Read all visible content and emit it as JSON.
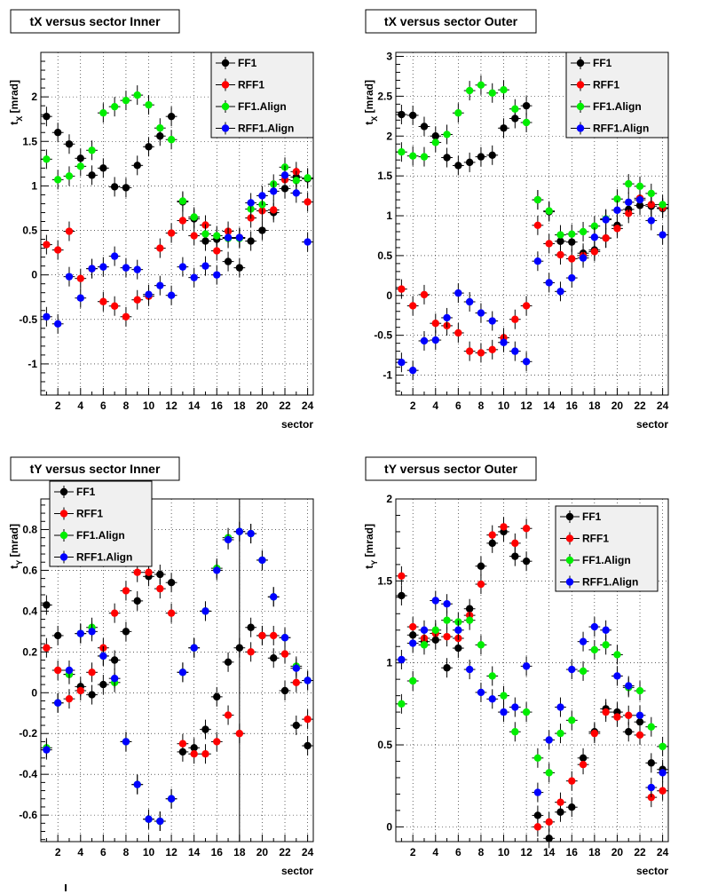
{
  "chart_data": [
    {
      "type": "scatter",
      "title": "tX versus sector Inner",
      "xlabel": "sector",
      "ylabel": "t_X  [mrad]",
      "xlim": [
        0.5,
        24.5
      ],
      "ylim": [
        -1.35,
        2.5
      ],
      "yticks": [
        -1,
        -0.5,
        0,
        0.5,
        1,
        1.5,
        2
      ],
      "yticklabels": [
        "-1",
        "-0.5",
        "0",
        "0.5",
        "1",
        "1.5",
        "2"
      ],
      "xticks": [
        2,
        4,
        6,
        8,
        10,
        12,
        14,
        16,
        18,
        20,
        22,
        24
      ],
      "xticklabels": [
        "2",
        "4",
        "6",
        "8",
        "10",
        "12",
        "14",
        "16",
        "18",
        "20",
        "22",
        "24"
      ],
      "grid": true,
      "legend_position": "top-right",
      "x": [
        1,
        2,
        3,
        4,
        5,
        6,
        7,
        8,
        9,
        10,
        11,
        12,
        13,
        14,
        15,
        16,
        17,
        18,
        19,
        20,
        21,
        22,
        23,
        24
      ],
      "series": [
        {
          "name": "FF1",
          "color": "#000000",
          "values": [
            1.78,
            1.6,
            1.47,
            1.31,
            1.12,
            1.2,
            0.99,
            0.98,
            1.23,
            1.44,
            1.56,
            1.78,
            0.82,
            0.63,
            0.38,
            0.4,
            0.15,
            0.08,
            0.38,
            0.5,
            0.7,
            0.97,
            1.1,
            1.08
          ]
        },
        {
          "name": "RFF1",
          "color": "#ff0000",
          "values": [
            0.34,
            0.28,
            0.49,
            -0.04,
            0.07,
            -0.3,
            -0.35,
            -0.47,
            -0.28,
            -0.24,
            0.3,
            0.47,
            0.61,
            0.44,
            0.56,
            0.27,
            0.49,
            0.42,
            0.64,
            0.72,
            0.73,
            1.07,
            1.16,
            0.82
          ]
        },
        {
          "name": "FF1.Align",
          "color": "#00ee00",
          "values": [
            1.3,
            1.07,
            1.11,
            1.22,
            1.4,
            1.82,
            1.89,
            1.96,
            2.02,
            1.91,
            1.65,
            1.52,
            0.83,
            0.65,
            0.46,
            0.44,
            0.41,
            0.41,
            0.74,
            0.79,
            1.02,
            1.21,
            1.06,
            1.09
          ]
        },
        {
          "name": "RFF1.Align",
          "color": "#0000ff",
          "values": [
            -0.47,
            -0.55,
            -0.02,
            -0.26,
            0.07,
            0.09,
            0.21,
            0.08,
            0.06,
            -0.22,
            -0.12,
            -0.23,
            0.09,
            -0.03,
            0.1,
            0.0,
            0.42,
            0.42,
            0.81,
            0.89,
            0.94,
            1.12,
            0.92,
            0.37
          ]
        }
      ]
    },
    {
      "type": "scatter",
      "title": "tX versus sector Outer",
      "xlabel": "sector",
      "ylabel": "t_X  [mrad]",
      "xlim": [
        0.5,
        24.5
      ],
      "ylim": [
        -1.25,
        3.05
      ],
      "yticks": [
        -1,
        -0.5,
        0,
        0.5,
        1,
        1.5,
        2,
        2.5,
        3
      ],
      "yticklabels": [
        "-1",
        "-0.5",
        "0",
        "0.5",
        "1",
        "1.5",
        "2",
        "2.5",
        "3"
      ],
      "xticks": [
        2,
        4,
        6,
        8,
        10,
        12,
        14,
        16,
        18,
        20,
        22,
        24
      ],
      "xticklabels": [
        "2",
        "4",
        "6",
        "8",
        "10",
        "12",
        "14",
        "16",
        "18",
        "20",
        "22",
        "24"
      ],
      "grid": true,
      "legend_position": "top-right",
      "x": [
        1,
        2,
        3,
        4,
        5,
        6,
        7,
        8,
        9,
        10,
        11,
        12,
        13,
        14,
        15,
        16,
        17,
        18,
        19,
        20,
        21,
        22,
        23,
        24
      ],
      "series": [
        {
          "name": "FF1",
          "color": "#000000",
          "values": [
            2.27,
            2.26,
            2.12,
            2.0,
            1.73,
            1.63,
            1.67,
            1.74,
            1.76,
            2.1,
            2.22,
            2.38,
            1.2,
            1.05,
            0.68,
            0.67,
            0.53,
            0.57,
            0.72,
            0.88,
            1.08,
            1.13,
            1.12,
            1.09
          ]
        },
        {
          "name": "RFF1",
          "color": "#ff0000",
          "values": [
            0.08,
            -0.13,
            0.01,
            -0.35,
            -0.38,
            -0.47,
            -0.7,
            -0.72,
            -0.68,
            -0.53,
            -0.3,
            -0.13,
            0.88,
            0.65,
            0.51,
            0.46,
            0.5,
            0.55,
            0.72,
            0.84,
            1.03,
            1.22,
            1.14,
            1.1
          ]
        },
        {
          "name": "FF1.Align",
          "color": "#00ee00",
          "values": [
            1.8,
            1.75,
            1.74,
            1.92,
            2.02,
            2.29,
            2.57,
            2.64,
            2.54,
            2.58,
            2.34,
            2.17,
            1.2,
            1.06,
            0.76,
            0.77,
            0.8,
            0.87,
            0.96,
            1.21,
            1.4,
            1.37,
            1.28,
            1.14
          ]
        },
        {
          "name": "RFF1.Align",
          "color": "#0000ff",
          "values": [
            -0.84,
            -0.94,
            -0.57,
            -0.56,
            -0.28,
            0.03,
            -0.08,
            -0.22,
            -0.32,
            -0.59,
            -0.7,
            -0.83,
            0.43,
            0.16,
            0.05,
            0.22,
            0.47,
            0.73,
            0.95,
            1.07,
            1.17,
            1.2,
            0.94,
            0.76
          ]
        }
      ]
    },
    {
      "type": "scatter",
      "title": "tY versus sector Inner",
      "xlabel": "sector",
      "ylabel": "t_Y  [mrad]",
      "xlim": [
        0.5,
        24.5
      ],
      "ylim": [
        -0.73,
        0.95
      ],
      "yticks": [
        -0.6,
        -0.4,
        -0.2,
        0,
        0.2,
        0.4,
        0.6,
        0.8
      ],
      "yticklabels": [
        "-0.6",
        "-0.4",
        "-0.2",
        "0",
        "0.2",
        "0.4",
        "0.6",
        "0.8"
      ],
      "xticks": [
        2,
        4,
        6,
        8,
        10,
        12,
        14,
        16,
        18,
        20,
        22,
        24
      ],
      "xticklabels": [
        "2",
        "4",
        "6",
        "8",
        "10",
        "12",
        "14",
        "16",
        "18",
        "20",
        "22",
        "24"
      ],
      "grid": true,
      "legend_position": "top-left",
      "x": [
        1,
        2,
        3,
        4,
        5,
        6,
        7,
        8,
        9,
        10,
        11,
        12,
        13,
        14,
        15,
        16,
        17,
        18,
        19,
        20,
        21,
        22,
        23,
        24
      ],
      "series": [
        {
          "name": "FF1",
          "color": "#000000",
          "values": [
            0.43,
            0.28,
            0.09,
            0.03,
            -0.01,
            0.04,
            0.16,
            0.3,
            0.45,
            0.57,
            0.58,
            0.54,
            -0.29,
            -0.27,
            -0.18,
            -0.02,
            0.15,
            0.22,
            0.32,
            0.28,
            0.17,
            0.01,
            -0.16,
            -0.26
          ]
        },
        {
          "name": "RFF1",
          "color": "#ff0000",
          "values": [
            0.22,
            0.11,
            -0.03,
            0.01,
            0.1,
            0.22,
            0.39,
            0.5,
            0.59,
            0.59,
            0.51,
            0.39,
            -0.25,
            -0.3,
            -0.3,
            -0.24,
            -0.11,
            -0.2,
            0.2,
            0.28,
            0.28,
            0.19,
            0.05,
            -0.13
          ]
        },
        {
          "name": "FF1.Align",
          "color": "#00ee00",
          "values": [
            -0.27,
            -0.05,
            0.09,
            0.29,
            0.32,
            0.18,
            0.05,
            -0.24,
            -0.45,
            -0.62,
            -0.63,
            -0.52,
            0.1,
            0.22,
            0.4,
            0.61,
            0.76,
            0.79,
            0.78,
            0.65,
            0.47,
            0.27,
            0.13,
            0.06
          ]
        },
        {
          "name": "RFF1.Align",
          "color": "#0000ff",
          "values": [
            -0.28,
            -0.05,
            0.11,
            0.29,
            0.3,
            0.18,
            0.07,
            -0.24,
            -0.45,
            -0.62,
            -0.63,
            -0.52,
            0.1,
            0.22,
            0.4,
            0.6,
            0.75,
            0.79,
            0.78,
            0.65,
            0.47,
            0.27,
            0.12,
            0.06
          ]
        }
      ]
    },
    {
      "type": "scatter",
      "title": "tY versus sector Outer",
      "xlabel": "sector",
      "ylabel": "t_Y  [mrad]",
      "xlim": [
        0.5,
        24.5
      ],
      "ylim": [
        -0.09,
        2.0
      ],
      "yticks": [
        0,
        0.5,
        1,
        1.5,
        2
      ],
      "yticklabels": [
        "0",
        "0.5",
        "1",
        "1.5",
        "2"
      ],
      "xticks": [
        2,
        4,
        6,
        8,
        10,
        12,
        14,
        16,
        18,
        20,
        22,
        24
      ],
      "xticklabels": [
        "2",
        "4",
        "6",
        "8",
        "10",
        "12",
        "14",
        "16",
        "18",
        "20",
        "22",
        "24"
      ],
      "grid": true,
      "legend_position": "top-right",
      "x": [
        1,
        2,
        3,
        4,
        5,
        6,
        7,
        8,
        9,
        10,
        11,
        12,
        13,
        14,
        15,
        16,
        17,
        18,
        19,
        20,
        21,
        22,
        23,
        24
      ],
      "series": [
        {
          "name": "FF1",
          "color": "#000000",
          "values": [
            1.41,
            1.17,
            1.13,
            1.14,
            0.97,
            1.09,
            1.33,
            1.59,
            1.73,
            1.8,
            1.65,
            1.62,
            0.07,
            -0.07,
            0.09,
            0.12,
            0.42,
            0.58,
            0.72,
            0.7,
            0.58,
            0.64,
            0.39,
            0.35
          ]
        },
        {
          "name": "RFF1",
          "color": "#ff0000",
          "values": [
            1.53,
            1.22,
            1.15,
            1.18,
            1.16,
            1.15,
            1.29,
            1.48,
            1.78,
            1.83,
            1.73,
            1.82,
            0.0,
            0.03,
            0.15,
            0.28,
            0.38,
            0.57,
            0.7,
            0.67,
            0.68,
            0.56,
            0.18,
            0.22
          ]
        },
        {
          "name": "FF1.Align",
          "color": "#00ee00",
          "values": [
            0.75,
            0.89,
            1.11,
            1.2,
            1.26,
            1.25,
            1.26,
            1.11,
            0.92,
            0.8,
            0.58,
            0.7,
            0.42,
            0.33,
            0.57,
            0.65,
            0.95,
            1.08,
            1.11,
            1.05,
            0.85,
            0.83,
            0.61,
            0.49
          ]
        },
        {
          "name": "RFF1.Align",
          "color": "#0000ff",
          "values": [
            1.02,
            1.12,
            1.2,
            1.38,
            1.36,
            1.2,
            0.96,
            0.82,
            0.78,
            0.7,
            0.73,
            0.98,
            0.21,
            0.53,
            0.73,
            0.96,
            1.13,
            1.22,
            1.2,
            0.92,
            0.86,
            0.68,
            0.24,
            0.33
          ]
        }
      ]
    }
  ]
}
